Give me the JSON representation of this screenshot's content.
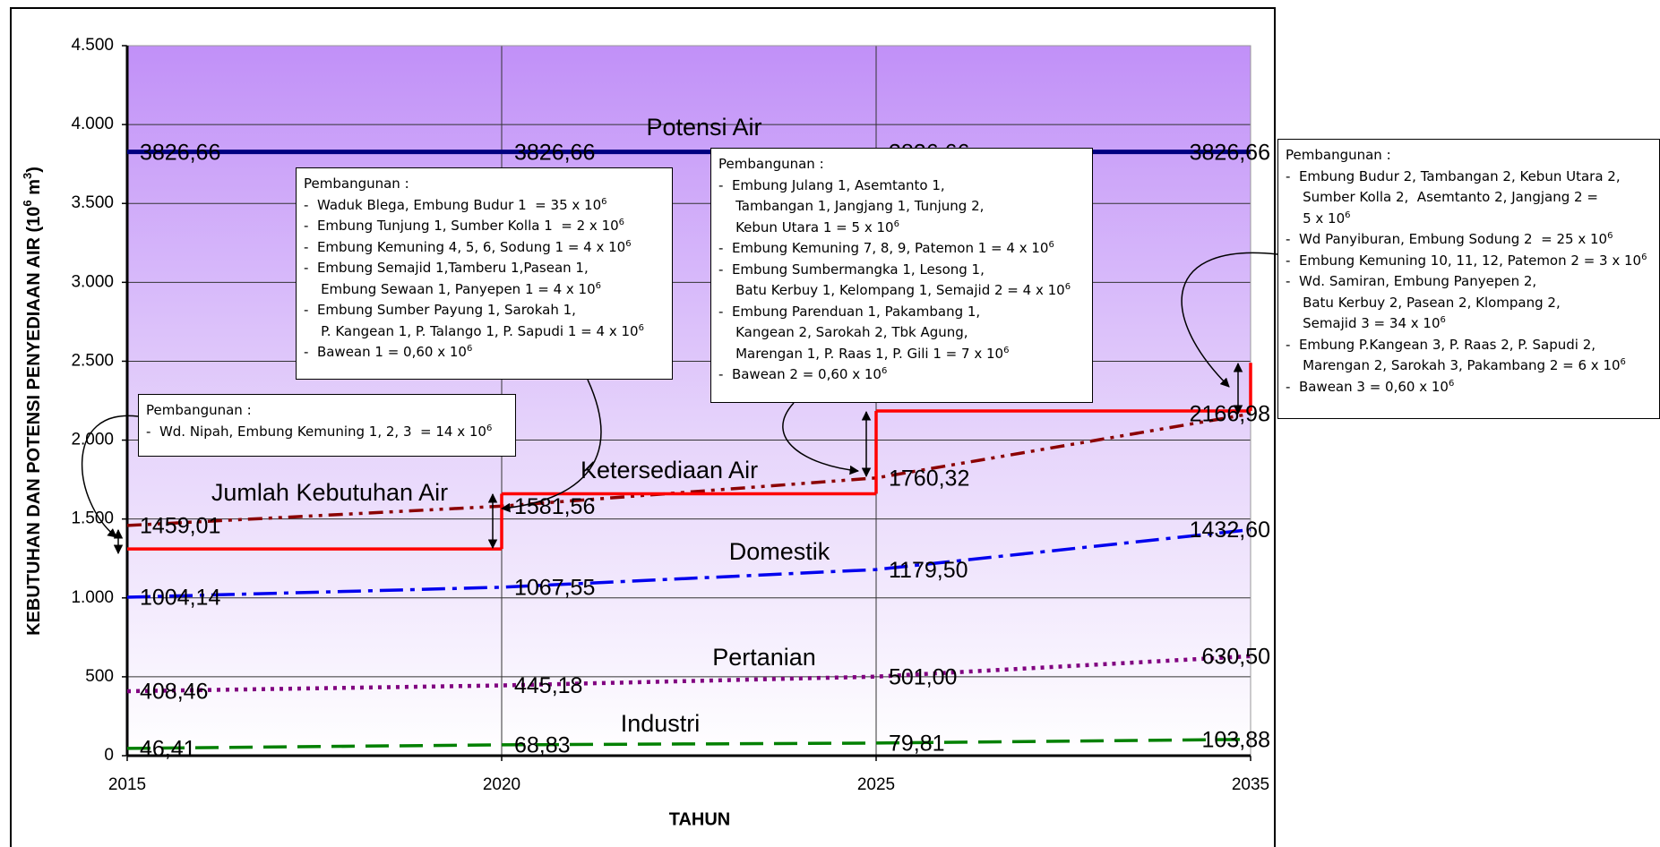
{
  "chart_data": {
    "type": "line",
    "categories": [
      "2015",
      "2020",
      "2025",
      "2035"
    ],
    "xlabel": "TAHUN",
    "ylabel": [
      {
        "text": "KEBUTUHAN DAN POTENSI PENYEDIAAN AIR (10"
      },
      {
        "sup": "6"
      },
      {
        "text": " m"
      },
      {
        "sup": "3"
      },
      {
        "text": ")"
      }
    ],
    "ylim": [
      0,
      4500
    ],
    "yticks": [
      0,
      500,
      {
        "value": 1000,
        "label": "1.000"
      },
      {
        "value": 1500,
        "label": "1.500"
      },
      {
        "value": 2000,
        "label": "2.000"
      },
      {
        "value": 2500,
        "label": "2.500"
      },
      {
        "value": 3000,
        "label": "3.000"
      },
      {
        "value": 3500,
        "label": "3.500"
      },
      {
        "value": 4000,
        "label": "4.000"
      },
      {
        "value": 4500,
        "label": "4.500"
      }
    ],
    "grid": true,
    "series": [
      {
        "name": "Potensi Air",
        "color": "#000080",
        "dash": "solid",
        "values": [
          3826.66,
          3826.66,
          3826.66,
          3826.66
        ],
        "value_labels": [
          "3826,66",
          "3826,66",
          "3826,66",
          "3826,66"
        ]
      },
      {
        "name": "Jumlah Kebutuhan Air",
        "color": "#8b0000",
        "dash": "dash-dot-dot",
        "values": [
          1459.01,
          1581.56,
          1760.32,
          2166.98
        ],
        "value_labels": [
          "1459,01",
          "1581,56",
          "1760,32",
          "2166,98"
        ]
      },
      {
        "name": "Ketersediaan Air",
        "color": "#ff0000",
        "dash": "step",
        "values": [
          1310,
          1660,
          2185,
          2490
        ]
      },
      {
        "name": "Domestik",
        "color": "#0000ee",
        "dash": "dash-dot",
        "values": [
          1004.14,
          1067.55,
          1179.5,
          1432.6
        ],
        "value_labels": [
          "1004,14",
          "1067,55",
          "1179,50",
          "1432,60"
        ]
      },
      {
        "name": "Pertanian",
        "color": "#800080",
        "dash": "dot",
        "values": [
          408.46,
          445.18,
          501.0,
          630.5
        ],
        "value_labels": [
          "408,46",
          "445,18",
          "501,00",
          "630,50"
        ]
      },
      {
        "name": "Industri",
        "color": "#008000",
        "dash": "dash",
        "values": [
          46.41,
          68.83,
          79.81,
          103.88
        ],
        "value_labels": [
          "46,41",
          "68,83",
          "79,81",
          "103,88"
        ]
      }
    ]
  },
  "annotations": [
    {
      "lines": [
        [
          {
            "text": "Pembangunan :"
          }
        ],
        [
          {
            "text": "-  Wd. Nipah, Embung Kemuning 1, 2, 3  = 14 x 10"
          },
          {
            "sup": "6"
          }
        ]
      ]
    },
    {
      "lines": [
        [
          {
            "text": "Pembangunan :"
          }
        ],
        [
          {
            "text": "-  Waduk Blega, Embung Budur 1  = 35 x 10"
          },
          {
            "sup": "6"
          }
        ],
        [
          {
            "text": "-  Embung Tunjung 1, Sumber Kolla 1  = 2 x 10"
          },
          {
            "sup": "6"
          }
        ],
        [
          {
            "text": "-  Embung Kemuning 4, 5, 6, Sodung 1 = 4 x 10"
          },
          {
            "sup": "6"
          }
        ],
        [
          {
            "text": "-  Embung Semajid 1,Tamberu 1,Pasean 1,"
          }
        ],
        [
          {
            "text": "    Embung Sewaan 1, Panyepen 1 = 4 x 10"
          },
          {
            "sup": "6"
          }
        ],
        [
          {
            "text": "-  Embung Sumber Payung 1, Sarokah 1,"
          }
        ],
        [
          {
            "text": "    P. Kangean 1, P. Talango 1, P. Sapudi 1 = 4 x 10"
          },
          {
            "sup": "6"
          }
        ],
        [
          {
            "text": "-  Bawean 1 = 0,60 x 10"
          },
          {
            "sup": "6"
          }
        ]
      ]
    },
    {
      "lines": [
        [
          {
            "text": "Pembangunan :"
          }
        ],
        [
          {
            "text": "-  Embung Julang 1, Asemtanto 1,"
          }
        ],
        [
          {
            "text": "    Tambangan 1, Jangjang 1, Tunjung 2,"
          }
        ],
        [
          {
            "text": "    Kebun Utara 1 = 5 x 10"
          },
          {
            "sup": "6"
          }
        ],
        [
          {
            "text": "-  Embung Kemuning 7, 8, 9, Patemon 1 = 4 x 10"
          },
          {
            "sup": "6"
          }
        ],
        [
          {
            "text": "-  Embung Sumbermangka 1, Lesong 1,"
          }
        ],
        [
          {
            "text": "    Batu Kerbuy 1, Kelompang 1, Semajid 2 = 4 x 10"
          },
          {
            "sup": "6"
          }
        ],
        [
          {
            "text": "-  Embung Parenduan 1, Pakambang 1,"
          }
        ],
        [
          {
            "text": "    Kangean 2, Sarokah 2, Tbk Agung,"
          }
        ],
        [
          {
            "text": "    Marengan 1, P. Raas 1, P. Gili 1 = 7 x 10"
          },
          {
            "sup": "6"
          }
        ],
        [
          {
            "text": "-  Bawean 2 = 0,60 x 10"
          },
          {
            "sup": "6"
          }
        ]
      ]
    },
    {
      "lines": [
        [
          {
            "text": "Pembangunan :"
          }
        ],
        [
          {
            "text": "-  Embung Budur 2, Tambangan 2, Kebun Utara 2,"
          }
        ],
        [
          {
            "text": "    Sumber Kolla 2,  Asemtanto 2, Jangjang 2 ="
          }
        ],
        [
          {
            "text": "    5 x 10"
          },
          {
            "sup": "6"
          }
        ],
        [
          {
            "text": "-  Wd Panyiburan, Embung Sodung 2  = 25 x 10"
          },
          {
            "sup": "6"
          }
        ],
        [
          {
            "text": "-  Embung Kemuning 10, 11, 12, Patemon 2 = 3 x 10"
          },
          {
            "sup": "6"
          }
        ],
        [
          {
            "text": "-  Wd. Samiran, Embung Panyepen 2,"
          }
        ],
        [
          {
            "text": "    Batu Kerbuy 2, Pasean 2, Klompang 2,"
          }
        ],
        [
          {
            "text": "    Semajid 3 = 34 x 10"
          },
          {
            "sup": "6"
          }
        ],
        [
          {
            "text": "-  Embung P.Kangean 3, P. Raas 2, P. Sapudi 2,"
          }
        ],
        [
          {
            "text": "    Marengan 2, Sarokah 3, Pakambang 2 = 6 x 10"
          },
          {
            "sup": "6"
          }
        ],
        [
          {
            "text": "-  Bawean 3 = 0,60 x 10"
          },
          {
            "sup": "6"
          }
        ]
      ]
    }
  ]
}
